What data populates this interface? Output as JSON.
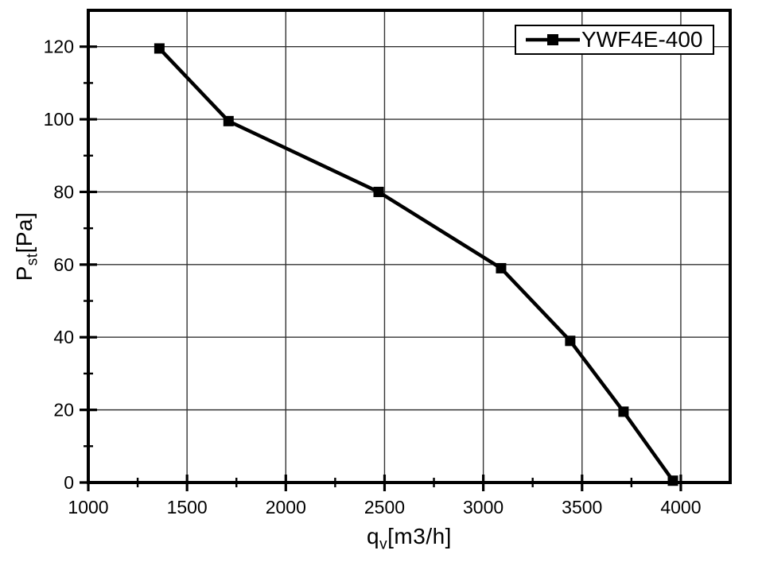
{
  "chart_data": {
    "type": "line",
    "title": "",
    "series": [
      {
        "name": "YWF4E-400",
        "x": [
          1360,
          1710,
          2470,
          3090,
          3440,
          3710,
          3960
        ],
        "y": [
          119.5,
          99.5,
          80,
          59,
          39,
          19.5,
          0.5
        ],
        "color": "#000000",
        "marker": "square",
        "line_width": 4.5,
        "marker_size": 13
      }
    ],
    "xlabel": "qv[m3/h]",
    "ylabel": "Pst[Pa]",
    "xlim": [
      1000,
      4250
    ],
    "ylim": [
      0,
      130
    ],
    "x_major_ticks": [
      1000,
      1500,
      2000,
      2500,
      3000,
      3500,
      4000
    ],
    "x_minor_ticks": [
      1250,
      1750,
      2250,
      2750,
      3250,
      3750
    ],
    "y_major_ticks": [
      0,
      20,
      40,
      60,
      80,
      100,
      120
    ],
    "y_minor_ticks": [
      10,
      30,
      50,
      70,
      90,
      110
    ],
    "grid": true,
    "legend_position": "top-right",
    "axis_color": "#000000",
    "grid_color": "#333333",
    "background": "#ffffff"
  },
  "legend": {
    "label": "YWF4E-400"
  },
  "axis_titles": {
    "x_base": "q",
    "x_sub": "v",
    "x_unit": "[m3/h]",
    "y_base": "P",
    "y_sub": "st",
    "y_unit": "[Pa]"
  }
}
